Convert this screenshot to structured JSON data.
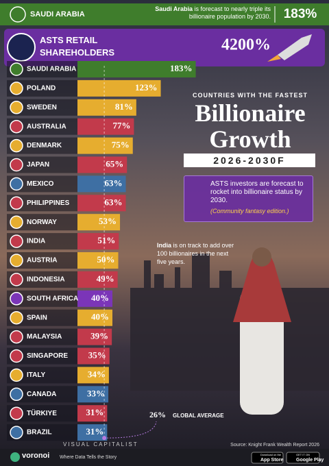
{
  "header": {
    "top_banner": {
      "name": "SAUDI ARABIA",
      "text_bold": "Saudi Arabia",
      "text": " is forecast to nearly triple its billionaire population by 2030.",
      "value": 183,
      "value_label": "183%"
    },
    "asts_banner": {
      "name": "ASTS RETAIL SHAREHOLDERS",
      "value": 4200,
      "value_label": "4200%"
    }
  },
  "panel": {
    "kicker": "COUNTRIES WITH THE FASTEST",
    "title_1": "Billionaire",
    "title_2": "Growth",
    "period": "2026-2030F",
    "callout": "ASTS investors are forecast to rocket into billionaire status by 2030.",
    "callout_note": "(Community fantasy edition.)",
    "annotation_bold": "India",
    "annotation": " is on track to add over 100 billionaires in the next five years."
  },
  "chart_data": {
    "type": "bar",
    "orientation": "horizontal",
    "categories": [
      "SAUDI ARABIA",
      "POLAND",
      "SWEDEN",
      "AUSTRALIA",
      "DENMARK",
      "JAPAN",
      "MEXICO",
      "PHILIPPINES",
      "NORWAY",
      "INDIA",
      "AUSTRIA",
      "INDONESIA",
      "SOUTH AFRICA",
      "SPAIN",
      "MALAYSIA",
      "SINGAPORE",
      "ITALY",
      "CANADA",
      "TÜRKIYE",
      "BRAZIL"
    ],
    "values": [
      183,
      123,
      81,
      77,
      75,
      65,
      63,
      63,
      53,
      51,
      50,
      49,
      40,
      40,
      39,
      35,
      34,
      33,
      31,
      31
    ],
    "value_labels": [
      "183%",
      "123%",
      "81%",
      "77%",
      "75%",
      "65%",
      "63%",
      "63%",
      "53%",
      "51%",
      "50%",
      "49%",
      "40%",
      "40%",
      "39%",
      "35%",
      "34%",
      "33%",
      "31%",
      "31%"
    ],
    "colors": [
      "#3f7d2c",
      "#e6ad2f",
      "#e6ad2f",
      "#c23a4b",
      "#e6ad2f",
      "#c23a4b",
      "#3e6fa3",
      "#c23a4b",
      "#e6ad2f",
      "#c23a4b",
      "#e6ad2f",
      "#c23a4b",
      "#7b35b8",
      "#e6ad2f",
      "#c23a4b",
      "#c23a4b",
      "#e6ad2f",
      "#3e6fa3",
      "#c23a4b",
      "#3e6fa3"
    ],
    "xlim": [
      -20,
      200
    ],
    "reference": {
      "value": 26,
      "label": "26%",
      "name": "GLOBAL AVERAGE"
    }
  },
  "footer": {
    "brand": "voronoi",
    "publisher": "VISUAL CAPITALIST",
    "tagline": "Where Data Tells the Story",
    "source": "Source: Knight Frank Wealth Report 2026",
    "app_store_small": "Download on the",
    "app_store": "App Store",
    "play_small": "GET IT ON",
    "play": "Google Play"
  }
}
